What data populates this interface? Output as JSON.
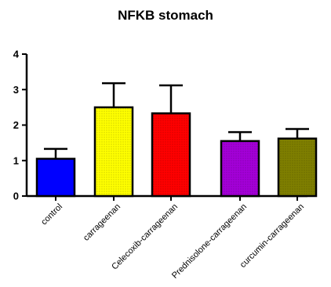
{
  "chart_data": {
    "type": "bar",
    "title": "NFKB stomach",
    "xlabel": "",
    "ylabel": "",
    "ylim": [
      0,
      4
    ],
    "yticks": [
      "0",
      "1",
      "2",
      "3",
      "4"
    ],
    "categories": [
      "control",
      "carrageenan",
      "Celecoxib-carrageenan",
      "Prednisolone-carrageenan",
      "curcumin-carrageenan"
    ],
    "values": [
      1.05,
      2.5,
      2.33,
      1.55,
      1.62
    ],
    "error": [
      0.28,
      0.68,
      0.79,
      0.25,
      0.27
    ],
    "bar_colors": [
      "#0000ff",
      "#ffff00",
      "#ff0000",
      "#a400d8",
      "#7f7f00"
    ],
    "grid": false,
    "legend": "none"
  }
}
